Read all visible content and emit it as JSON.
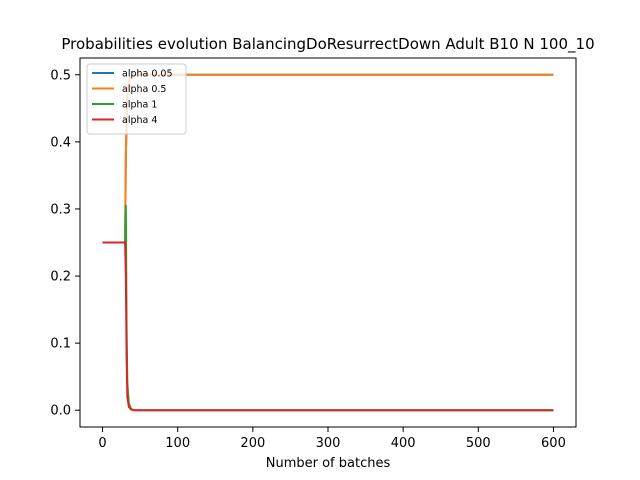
{
  "chart_data": {
    "type": "line",
    "title": "Probabilities evolution BalancingDoResurrectDown Adult B10 N 100_10",
    "xlabel": "Number of batches",
    "ylabel": "",
    "xlim": [
      -30,
      630
    ],
    "ylim": [
      -0.025,
      0.525
    ],
    "xticks": [
      0,
      100,
      200,
      300,
      400,
      500,
      600
    ],
    "yticks": [
      0.0,
      0.1,
      0.2,
      0.3,
      0.4,
      0.5
    ],
    "xtick_labels": [
      "0",
      "100",
      "200",
      "300",
      "400",
      "500",
      "600"
    ],
    "ytick_labels": [
      "0.0",
      "0.1",
      "0.2",
      "0.3",
      "0.4",
      "0.5"
    ],
    "legend_position": "upper-left",
    "grid": false,
    "series": [
      {
        "name": "alpha 0.05",
        "color": "#1f77b4",
        "x": [
          0,
          30,
          31,
          33,
          36,
          40,
          600
        ],
        "y": [
          0.25,
          0.25,
          0.38,
          0.47,
          0.495,
          0.5,
          0.5
        ]
      },
      {
        "name": "alpha 0.5",
        "color": "#ff7f0e",
        "x": [
          0,
          30,
          31,
          33,
          36,
          40,
          600
        ],
        "y": [
          0.25,
          0.25,
          0.38,
          0.47,
          0.495,
          0.5,
          0.5
        ]
      },
      {
        "name": "alpha 1",
        "color": "#2ca02c",
        "x": [
          0,
          30,
          31,
          32,
          33,
          35,
          38,
          42,
          600
        ],
        "y": [
          0.25,
          0.25,
          0.305,
          0.12,
          0.04,
          0.01,
          0.002,
          0.0,
          0.0
        ]
      },
      {
        "name": "alpha 4",
        "color": "#d62728",
        "x": [
          0,
          30,
          31,
          32,
          33,
          35,
          38,
          42,
          600
        ],
        "y": [
          0.25,
          0.25,
          0.2,
          0.08,
          0.02,
          0.005,
          0.001,
          0.0,
          0.0
        ]
      }
    ]
  }
}
